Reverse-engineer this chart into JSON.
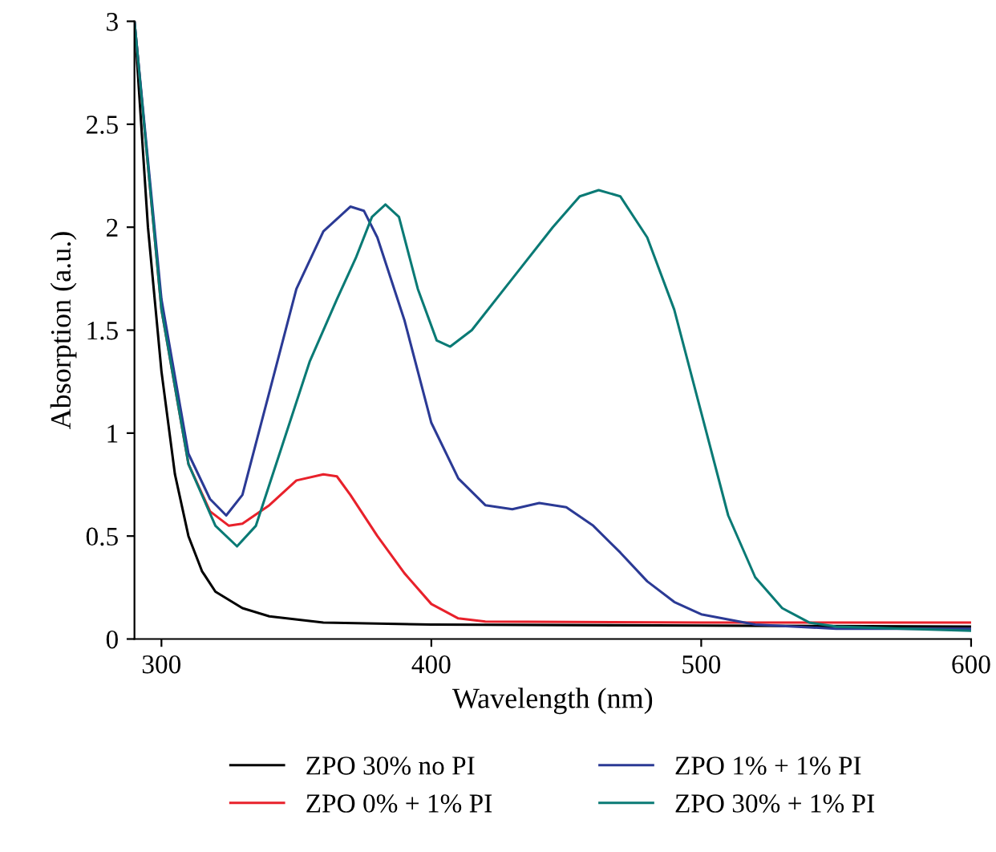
{
  "chart_data": {
    "type": "line",
    "xlabel": "Wavelength (nm)",
    "ylabel": "Absorption (a.u.)",
    "xlim": [
      290,
      600
    ],
    "ylim": [
      0,
      3
    ],
    "xticks": [
      300,
      400,
      500,
      600
    ],
    "yticks": [
      0,
      0.5,
      1,
      1.5,
      2,
      2.5,
      3
    ],
    "grid": false,
    "legend": "bottom",
    "marker": "none",
    "line_style": "solid",
    "series": [
      {
        "name": "ZPO 30% no PI",
        "color": "#000000",
        "x": [
          290,
          295,
          300,
          305,
          310,
          315,
          320,
          330,
          340,
          360,
          400,
          500,
          600
        ],
        "values": [
          3.0,
          2.0,
          1.3,
          0.8,
          0.5,
          0.33,
          0.23,
          0.15,
          0.11,
          0.08,
          0.07,
          0.065,
          0.06
        ]
      },
      {
        "name": "ZPO 0% + 1% PI",
        "color": "#e8212b",
        "x": [
          290,
          300,
          310,
          318,
          325,
          330,
          340,
          350,
          360,
          365,
          370,
          380,
          390,
          400,
          410,
          420,
          500,
          600
        ],
        "values": [
          3.0,
          1.6,
          0.85,
          0.62,
          0.55,
          0.56,
          0.65,
          0.77,
          0.8,
          0.79,
          0.7,
          0.5,
          0.32,
          0.17,
          0.1,
          0.085,
          0.08,
          0.08
        ]
      },
      {
        "name": "ZPO 1% + 1% PI",
        "color": "#2b3a95",
        "x": [
          290,
          300,
          310,
          318,
          324,
          330,
          340,
          350,
          360,
          370,
          375,
          380,
          390,
          400,
          410,
          420,
          430,
          440,
          450,
          460,
          470,
          480,
          490,
          500,
          520,
          550,
          600
        ],
        "values": [
          3.0,
          1.65,
          0.9,
          0.68,
          0.6,
          0.7,
          1.2,
          1.7,
          1.98,
          2.1,
          2.08,
          1.95,
          1.55,
          1.05,
          0.78,
          0.65,
          0.63,
          0.66,
          0.64,
          0.55,
          0.42,
          0.28,
          0.18,
          0.12,
          0.07,
          0.05,
          0.05
        ]
      },
      {
        "name": "ZPO 30% + 1% PI",
        "color": "#0a7a75",
        "x": [
          290,
          300,
          310,
          320,
          328,
          335,
          345,
          355,
          365,
          372,
          378,
          383,
          388,
          395,
          402,
          407,
          415,
          430,
          445,
          455,
          462,
          470,
          480,
          490,
          500,
          510,
          520,
          530,
          540,
          550,
          600
        ],
        "values": [
          3.0,
          1.6,
          0.85,
          0.55,
          0.45,
          0.55,
          0.95,
          1.35,
          1.65,
          1.85,
          2.05,
          2.11,
          2.05,
          1.7,
          1.45,
          1.42,
          1.5,
          1.75,
          2.0,
          2.15,
          2.18,
          2.15,
          1.95,
          1.6,
          1.1,
          0.6,
          0.3,
          0.15,
          0.08,
          0.06,
          0.04
        ]
      }
    ]
  }
}
